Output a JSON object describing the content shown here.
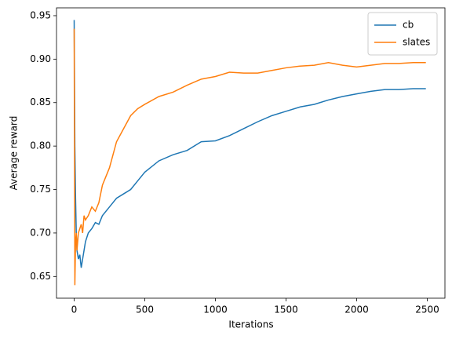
{
  "chart_data": {
    "type": "line",
    "xlabel": "Iterations",
    "ylabel": "Average reward",
    "x": [
      0,
      5,
      10,
      15,
      20,
      30,
      40,
      50,
      60,
      70,
      80,
      100,
      125,
      150,
      175,
      200,
      250,
      300,
      350,
      400,
      450,
      500,
      600,
      700,
      800,
      900,
      1000,
      1100,
      1200,
      1300,
      1400,
      1500,
      1600,
      1700,
      1800,
      1900,
      2000,
      2100,
      2200,
      2300,
      2400,
      2490
    ],
    "series": [
      {
        "name": "cb",
        "color": "#1f77b4",
        "values": [
          0.945,
          0.8,
          0.74,
          0.7,
          0.68,
          0.67,
          0.675,
          0.66,
          0.67,
          0.68,
          0.69,
          0.7,
          0.705,
          0.712,
          0.71,
          0.72,
          0.73,
          0.74,
          0.745,
          0.75,
          0.76,
          0.77,
          0.783,
          0.79,
          0.795,
          0.805,
          0.806,
          0.812,
          0.82,
          0.828,
          0.835,
          0.84,
          0.845,
          0.848,
          0.853,
          0.857,
          0.86,
          0.863,
          0.865,
          0.865,
          0.866,
          0.866
        ]
      },
      {
        "name": "slates",
        "color": "#ff7f0e",
        "values": [
          0.935,
          0.64,
          0.69,
          0.7,
          0.68,
          0.7,
          0.705,
          0.71,
          0.7,
          0.72,
          0.715,
          0.72,
          0.73,
          0.725,
          0.735,
          0.755,
          0.775,
          0.805,
          0.82,
          0.835,
          0.843,
          0.848,
          0.857,
          0.862,
          0.87,
          0.877,
          0.88,
          0.885,
          0.884,
          0.884,
          0.887,
          0.89,
          0.892,
          0.893,
          0.896,
          0.893,
          0.891,
          0.893,
          0.895,
          0.895,
          0.896,
          0.896
        ]
      }
    ],
    "xlim": [
      -125,
      2625
    ],
    "ylim": [
      0.625,
      0.959
    ],
    "xticks": [
      0,
      500,
      1000,
      1500,
      2000,
      2500
    ],
    "yticks": [
      0.65,
      {
        "value": 0.7,
        "label": "0.70"
      },
      0.75,
      {
        "value": 0.8,
        "label": "0.80"
      },
      0.85,
      {
        "value": 0.9,
        "label": "0.90"
      },
      0.95
    ],
    "legend": "upper right"
  }
}
